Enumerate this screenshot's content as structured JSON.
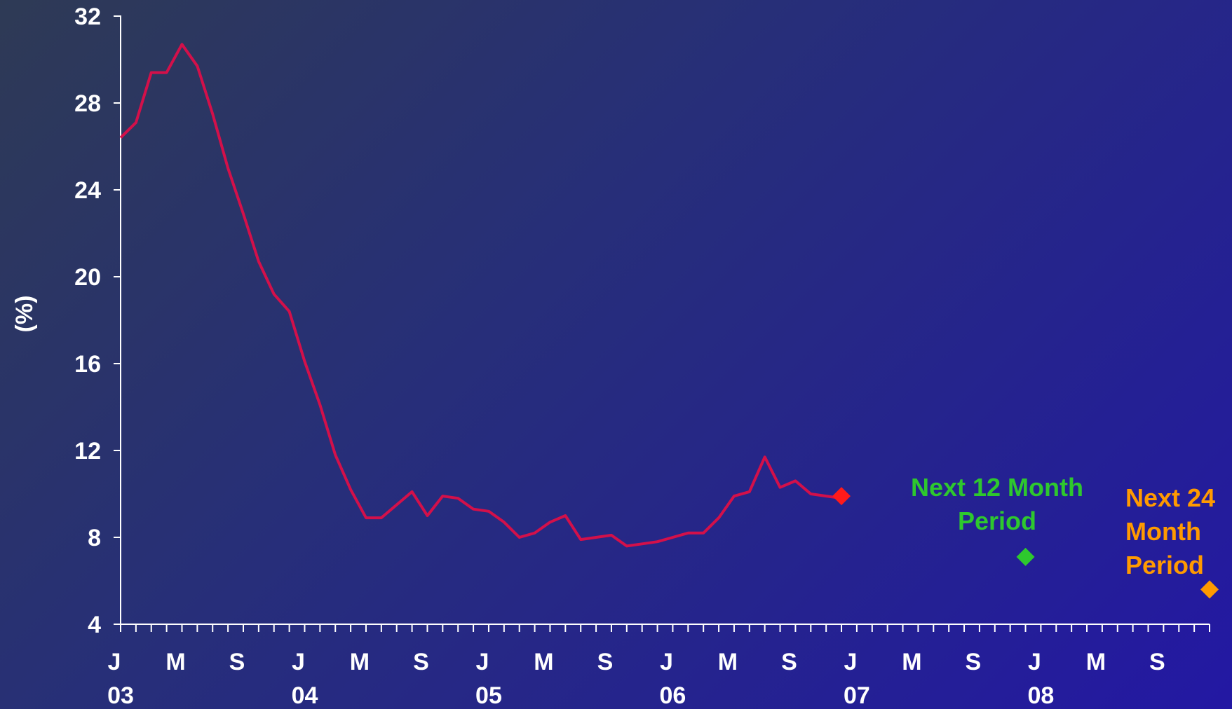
{
  "chart_data": {
    "type": "line",
    "xlabel": "",
    "ylabel": "(%)",
    "ylim": [
      4,
      32
    ],
    "yticks": [
      "4",
      "8",
      "12",
      "16",
      "20",
      "24",
      "28",
      "32"
    ],
    "x_tick_labels": [
      {
        "month": "J",
        "year": "03"
      },
      {
        "month": "M",
        "year": ""
      },
      {
        "month": "S",
        "year": ""
      },
      {
        "month": "J",
        "year": "04"
      },
      {
        "month": "M",
        "year": ""
      },
      {
        "month": "S",
        "year": ""
      },
      {
        "month": "J",
        "year": "05"
      },
      {
        "month": "M",
        "year": ""
      },
      {
        "month": "S",
        "year": ""
      },
      {
        "month": "J",
        "year": "06"
      },
      {
        "month": "M",
        "year": ""
      },
      {
        "month": "S",
        "year": ""
      },
      {
        "month": "J",
        "year": "07"
      },
      {
        "month": "M",
        "year": ""
      },
      {
        "month": "S",
        "year": ""
      },
      {
        "month": "J",
        "year": "08"
      },
      {
        "month": "M",
        "year": ""
      },
      {
        "month": "S",
        "year": ""
      }
    ],
    "xlim": [
      "2003-01",
      "2008-12"
    ],
    "grid": false,
    "series": [
      {
        "name": "",
        "color": "#d3104a",
        "x": [
          "2003-01",
          "2003-02",
          "2003-03",
          "2003-04",
          "2003-05",
          "2003-06",
          "2003-07",
          "2003-08",
          "2003-09",
          "2003-10",
          "2003-11",
          "2003-12",
          "2004-01",
          "2004-02",
          "2004-03",
          "2004-04",
          "2004-05",
          "2004-06",
          "2004-07",
          "2004-08",
          "2004-09",
          "2004-10",
          "2004-11",
          "2004-12",
          "2005-01",
          "2005-02",
          "2005-03",
          "2005-04",
          "2005-05",
          "2005-06",
          "2005-07",
          "2005-08",
          "2005-09",
          "2005-10",
          "2005-11",
          "2005-12",
          "2006-01",
          "2006-02",
          "2006-03",
          "2006-04",
          "2006-05",
          "2006-06",
          "2006-07",
          "2006-08",
          "2006-09",
          "2006-10",
          "2006-11",
          "2006-12"
        ],
        "values": [
          26.4,
          27.1,
          29.4,
          29.4,
          30.7,
          29.7,
          27.5,
          25.0,
          22.9,
          20.7,
          19.2,
          18.4,
          16.1,
          14.1,
          11.8,
          10.2,
          8.9,
          8.9,
          9.5,
          10.1,
          9.0,
          9.9,
          9.8,
          9.3,
          9.2,
          8.7,
          8.0,
          8.2,
          8.7,
          9.0,
          7.9,
          8.0,
          8.1,
          7.6,
          7.7,
          7.8,
          8.0,
          8.2,
          8.2,
          8.9,
          9.9,
          10.1,
          11.7,
          10.3,
          10.6,
          10.0,
          9.9,
          9.8
        ]
      }
    ],
    "markers": [
      {
        "x": "2006-12",
        "value": 9.9,
        "color": "#ff1a1a",
        "label": ""
      },
      {
        "x": "2007-12",
        "value": 7.1,
        "color": "#2ec82e",
        "label": "Next 12 Month Period"
      },
      {
        "x": "2008-12",
        "value": 5.6,
        "color": "#ff9a00",
        "label": "Next 24 Month Period"
      }
    ],
    "annotations": [
      {
        "lines": [
          "Next 12 Month",
          "Period"
        ],
        "color": "#2ec82e"
      },
      {
        "lines": [
          "Next 24",
          "Month",
          "Period"
        ],
        "color": "#ff9a00"
      }
    ]
  }
}
